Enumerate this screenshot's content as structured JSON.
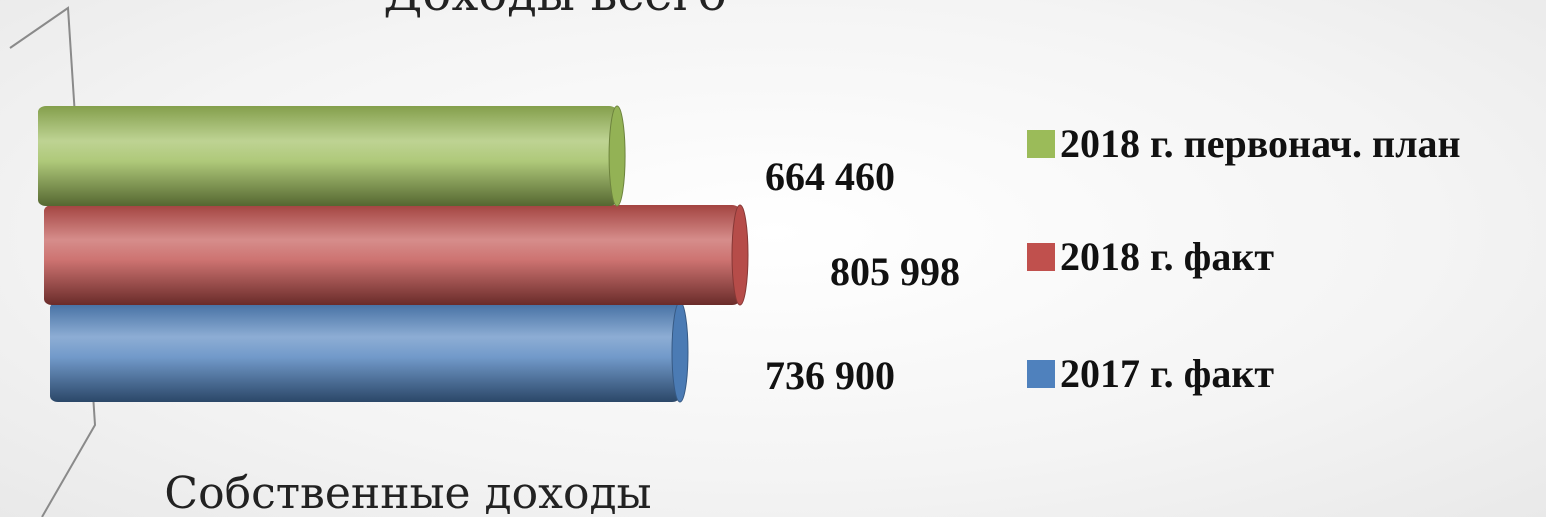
{
  "chart_data": {
    "type": "bar",
    "orientation": "horizontal",
    "title": "Доходы всего",
    "categories": [
      "Собственные доходы"
    ],
    "series": [
      {
        "name": "2017 г. факт",
        "values": [
          736900
        ],
        "value_label": "736 900",
        "color": "#4f81bd"
      },
      {
        "name": "2018 г. факт",
        "values": [
          805998
        ],
        "value_label": "805 998",
        "color": "#c0504d"
      },
      {
        "name": "2018 г. первонач. план",
        "values": [
          664460
        ],
        "value_label": "664 460",
        "color": "#9bbb59"
      }
    ],
    "legend_position": "right",
    "legend_order": [
      "2018 г. первонач. план",
      "2018 г. факт",
      "2017 г. факт"
    ],
    "grid": false,
    "xlim": [
      0,
      805998
    ]
  }
}
